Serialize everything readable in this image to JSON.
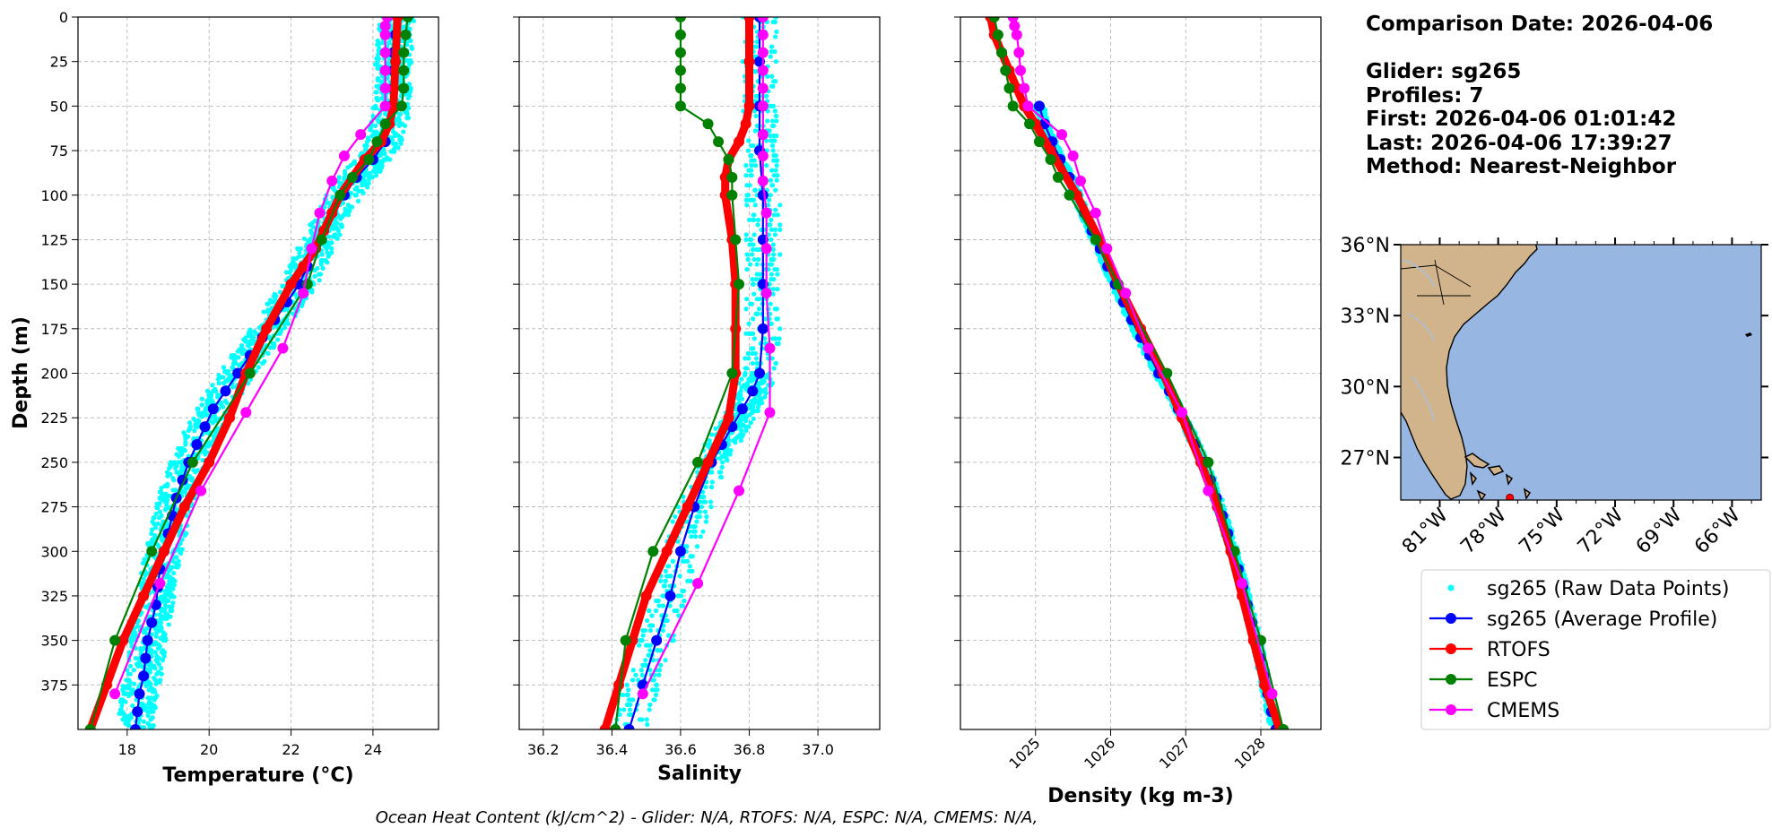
{
  "info": {
    "comparison": "Comparison Date: 2026-04-06",
    "glider": "Glider: sg265",
    "profiles": "Profiles: 7",
    "first": "First: 2026-04-06 01:01:42",
    "last": "Last: 2026-04-06 17:39:27",
    "method": "Method: Nearest-Neighbor"
  },
  "footer": "Ocean Heat Content (kJ/cm^2) - Glider: N/A,  RTOFS: N/A,  ESPC: N/A,  CMEMS: N/A,",
  "colors": {
    "raw": "#00ffff",
    "avg": "#0000ff",
    "rtofs": "#ff0000",
    "espc": "#008000",
    "cmems": "#ff00ff",
    "land": "#d2b48c",
    "ocean": "#97b6e1"
  },
  "legend": [
    "sg265 (Raw Data Points)",
    "sg265 (Average Profile)",
    "RTOFS",
    "ESPC",
    "CMEMS"
  ],
  "chart_data": [
    {
      "type": "line",
      "xlabel": "Temperature (°C)",
      "ylabel": "Depth (m)",
      "xlim": [
        16.8,
        25.6
      ],
      "ylim": [
        400,
        0
      ],
      "xticks": [
        "18",
        "20",
        "22",
        "24"
      ],
      "yticks": [
        "0",
        "25",
        "50",
        "75",
        "100",
        "125",
        "150",
        "175",
        "200",
        "225",
        "250",
        "275",
        "300",
        "325",
        "350",
        "375"
      ],
      "grid": true,
      "series": [
        {
          "name": "sg265 (Average Profile)",
          "depth": [
            0,
            10,
            20,
            30,
            40,
            50,
            60,
            70,
            80,
            90,
            100,
            110,
            120,
            130,
            140,
            150,
            160,
            170,
            180,
            190,
            200,
            210,
            220,
            230,
            240,
            250,
            260,
            270,
            280,
            290,
            300,
            310,
            320,
            330,
            340,
            350,
            360,
            370,
            380,
            390,
            400
          ],
          "values": [
            24.6,
            24.55,
            24.5,
            24.5,
            24.5,
            24.45,
            24.4,
            24.3,
            24.0,
            23.6,
            23.3,
            23.0,
            22.8,
            22.6,
            22.4,
            22.2,
            21.9,
            21.6,
            21.3,
            21.0,
            20.7,
            20.4,
            20.1,
            19.9,
            19.7,
            19.5,
            19.35,
            19.2,
            19.1,
            19.0,
            18.9,
            18.8,
            18.75,
            18.7,
            18.6,
            18.5,
            18.45,
            18.4,
            18.3,
            18.25,
            18.2
          ]
        },
        {
          "name": "RTOFS",
          "depth": [
            0,
            25,
            50,
            60,
            70,
            80,
            90,
            100,
            110,
            120,
            130,
            140,
            150,
            175,
            200,
            225,
            250,
            275,
            300,
            325,
            350,
            375,
            400
          ],
          "values": [
            24.6,
            24.55,
            24.5,
            24.4,
            24.2,
            23.8,
            23.5,
            23.2,
            23.0,
            22.8,
            22.6,
            22.3,
            22.0,
            21.4,
            20.9,
            20.5,
            20.0,
            19.4,
            18.9,
            18.4,
            17.9,
            17.5,
            17.1
          ]
        },
        {
          "name": "ESPC",
          "depth": [
            0,
            10,
            20,
            30,
            40,
            50,
            60,
            70,
            80,
            90,
            100,
            125,
            150,
            200,
            250,
            300,
            350,
            400
          ],
          "values": [
            24.85,
            24.8,
            24.75,
            24.75,
            24.75,
            24.7,
            24.3,
            24.1,
            23.9,
            23.5,
            23.2,
            22.75,
            22.4,
            21.0,
            19.6,
            18.6,
            17.7,
            17.1
          ]
        },
        {
          "name": "CMEMS",
          "depth": [
            0,
            5,
            10,
            20,
            30,
            40,
            50,
            66,
            78,
            92,
            110,
            130,
            155,
            186,
            222,
            266,
            318,
            380
          ],
          "values": [
            24.35,
            24.3,
            24.3,
            24.3,
            24.3,
            24.3,
            24.3,
            23.7,
            23.3,
            23.0,
            22.7,
            22.5,
            22.3,
            21.8,
            20.9,
            19.8,
            18.8,
            17.7
          ]
        }
      ]
    },
    {
      "type": "line",
      "xlabel": "Salinity",
      "xlim": [
        36.13,
        37.18
      ],
      "ylim": [
        400,
        0
      ],
      "xticks": [
        "36.2",
        "36.4",
        "36.6",
        "36.8",
        "37.0"
      ],
      "grid": true,
      "series": [
        {
          "name": "sg265 (Average Profile)",
          "depth": [
            0,
            25,
            50,
            75,
            100,
            125,
            150,
            175,
            200,
            210,
            220,
            230,
            240,
            250,
            275,
            300,
            325,
            350,
            375,
            400
          ],
          "values": [
            36.83,
            36.83,
            36.83,
            36.83,
            36.84,
            36.84,
            36.84,
            36.84,
            36.83,
            36.81,
            36.78,
            36.75,
            36.72,
            36.69,
            36.64,
            36.6,
            36.57,
            36.53,
            36.49,
            36.45
          ]
        },
        {
          "name": "RTOFS",
          "depth": [
            0,
            25,
            50,
            60,
            70,
            80,
            90,
            100,
            125,
            150,
            175,
            200,
            225,
            250,
            275,
            300,
            325,
            350,
            375,
            400
          ],
          "values": [
            36.8,
            36.8,
            36.8,
            36.79,
            36.77,
            36.74,
            36.73,
            36.73,
            36.75,
            36.76,
            36.76,
            36.76,
            36.74,
            36.68,
            36.62,
            36.56,
            36.5,
            36.46,
            36.42,
            36.38
          ]
        },
        {
          "name": "ESPC",
          "depth": [
            0,
            10,
            20,
            30,
            40,
            50,
            60,
            70,
            80,
            90,
            100,
            125,
            150,
            200,
            250,
            300,
            350,
            400
          ],
          "values": [
            36.6,
            36.6,
            36.6,
            36.6,
            36.6,
            36.6,
            36.68,
            36.71,
            36.74,
            36.75,
            36.75,
            36.76,
            36.77,
            36.75,
            36.65,
            36.52,
            36.44,
            36.41
          ]
        },
        {
          "name": "CMEMS",
          "depth": [
            0,
            10,
            20,
            30,
            40,
            50,
            66,
            78,
            92,
            110,
            130,
            155,
            186,
            222,
            266,
            318,
            380
          ],
          "values": [
            36.84,
            36.84,
            36.84,
            36.84,
            36.84,
            36.84,
            36.84,
            36.84,
            36.84,
            36.85,
            36.85,
            36.85,
            36.86,
            36.86,
            36.77,
            36.65,
            36.49
          ]
        }
      ]
    },
    {
      "type": "line",
      "xlabel": "Density (kg m-3)",
      "xlim": [
        1024.0,
        1028.8
      ],
      "ylim": [
        400,
        0
      ],
      "xticks": [
        "1025",
        "1026",
        "1027",
        "1028"
      ],
      "grid": true,
      "series": [
        {
          "name": "sg265 (Average Profile)",
          "depth": [
            50,
            60,
            70,
            80,
            90,
            100,
            110,
            120,
            130,
            140,
            150,
            160,
            170,
            180,
            190,
            200,
            210,
            220,
            230,
            240,
            250,
            260,
            270,
            280,
            290,
            300,
            310,
            320,
            330,
            340,
            350,
            360,
            370,
            380,
            390,
            400
          ],
          "values": [
            1025.05,
            1025.12,
            1025.22,
            1025.33,
            1025.45,
            1025.55,
            1025.65,
            1025.75,
            1025.86,
            1025.96,
            1026.06,
            1026.17,
            1026.28,
            1026.4,
            1026.52,
            1026.64,
            1026.78,
            1026.9,
            1027.02,
            1027.13,
            1027.24,
            1027.33,
            1027.41,
            1027.49,
            1027.56,
            1027.63,
            1027.7,
            1027.76,
            1027.82,
            1027.88,
            1027.94,
            1027.99,
            1028.04,
            1028.09,
            1028.14,
            1028.2
          ]
        },
        {
          "name": "RTOFS",
          "depth": [
            0,
            10,
            20,
            30,
            40,
            50,
            60,
            75,
            100,
            125,
            150,
            175,
            200,
            225,
            250,
            275,
            300,
            325,
            350,
            375,
            400
          ],
          "values": [
            1024.4,
            1024.45,
            1024.55,
            1024.65,
            1024.75,
            1024.85,
            1025.0,
            1025.2,
            1025.55,
            1025.85,
            1026.1,
            1026.4,
            1026.7,
            1026.95,
            1027.2,
            1027.42,
            1027.6,
            1027.75,
            1027.9,
            1028.05,
            1028.25
          ]
        },
        {
          "name": "ESPC",
          "depth": [
            0,
            10,
            20,
            30,
            40,
            50,
            60,
            70,
            80,
            90,
            100,
            125,
            150,
            200,
            250,
            300,
            350,
            400
          ],
          "values": [
            1024.45,
            1024.5,
            1024.55,
            1024.6,
            1024.65,
            1024.7,
            1024.92,
            1025.05,
            1025.2,
            1025.3,
            1025.45,
            1025.8,
            1026.1,
            1026.75,
            1027.3,
            1027.65,
            1028.0,
            1028.3
          ]
        },
        {
          "name": "CMEMS",
          "depth": [
            0,
            5,
            10,
            20,
            30,
            40,
            50,
            66,
            78,
            92,
            110,
            130,
            155,
            186,
            222,
            266,
            318,
            380
          ],
          "values": [
            1024.7,
            1024.72,
            1024.75,
            1024.78,
            1024.8,
            1024.85,
            1024.9,
            1025.35,
            1025.5,
            1025.6,
            1025.8,
            1025.95,
            1026.2,
            1026.5,
            1026.95,
            1027.3,
            1027.75,
            1028.15
          ]
        }
      ]
    },
    {
      "type": "map",
      "lat_ticks": [
        "36°N",
        "33°N",
        "30°N",
        "27°N"
      ],
      "lon_ticks": [
        "81°W",
        "78°W",
        "75°W",
        "72°W",
        "69°W",
        "66°W"
      ],
      "extent": {
        "lon": [
          -83,
          -64.5
        ],
        "lat": [
          25.2,
          36
        ]
      },
      "marker": {
        "lon": -77.4,
        "lat": 25.3
      }
    }
  ]
}
